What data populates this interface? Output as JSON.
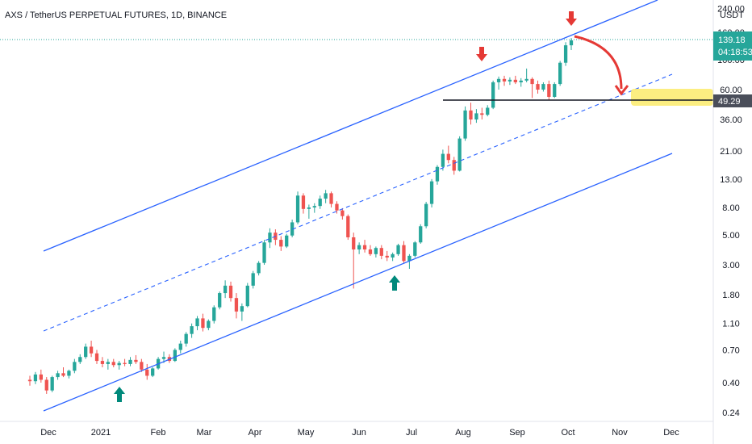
{
  "chart_data": {
    "type": "candlestick",
    "title": "AXS / TetherUS PERPETUAL FUTURES, 1D, BINANCE",
    "currency": "USDT",
    "scale": "log",
    "x_ticks": [
      "Dec",
      "2021",
      "Feb",
      "Mar",
      "Apr",
      "May",
      "Jun",
      "Jul",
      "Aug",
      "Sep",
      "Oct",
      "Nov",
      "Dec"
    ],
    "y_ticks": [
      "240.00",
      "160.00",
      "100.00",
      "60.00",
      "36.00",
      "21.00",
      "13.00",
      "8.00",
      "5.00",
      "3.00",
      "1.80",
      "1.10",
      "0.70",
      "0.40",
      "0.24"
    ],
    "last_price": "139.18",
    "countdown": "04:18:53",
    "horizontal_level": "49.29",
    "series": [
      {
        "values": [
          [
            0.42,
            0.45,
            0.38,
            0.41
          ],
          [
            0.41,
            0.48,
            0.39,
            0.46
          ],
          [
            0.46,
            0.5,
            0.4,
            0.42
          ],
          [
            0.42,
            0.44,
            0.33,
            0.35
          ],
          [
            0.35,
            0.45,
            0.34,
            0.44
          ],
          [
            0.44,
            0.49,
            0.42,
            0.47
          ],
          [
            0.47,
            0.52,
            0.44,
            0.45
          ],
          [
            0.45,
            0.5,
            0.43,
            0.49
          ],
          [
            0.49,
            0.6,
            0.47,
            0.57
          ],
          [
            0.57,
            0.65,
            0.55,
            0.62
          ],
          [
            0.62,
            0.78,
            0.6,
            0.74
          ],
          [
            0.74,
            0.82,
            0.62,
            0.66
          ],
          [
            0.66,
            0.7,
            0.55,
            0.58
          ],
          [
            0.58,
            0.62,
            0.52,
            0.55
          ],
          [
            0.55,
            0.6,
            0.5,
            0.57
          ],
          [
            0.57,
            0.6,
            0.52,
            0.54
          ],
          [
            0.54,
            0.58,
            0.5,
            0.56
          ],
          [
            0.56,
            0.6,
            0.53,
            0.55
          ],
          [
            0.55,
            0.62,
            0.53,
            0.59
          ],
          [
            0.59,
            0.64,
            0.55,
            0.57
          ],
          [
            0.57,
            0.6,
            0.48,
            0.5
          ],
          [
            0.5,
            0.55,
            0.42,
            0.45
          ],
          [
            0.45,
            0.52,
            0.44,
            0.51
          ],
          [
            0.51,
            0.62,
            0.5,
            0.6
          ],
          [
            0.6,
            0.68,
            0.56,
            0.62
          ],
          [
            0.62,
            0.65,
            0.56,
            0.58
          ],
          [
            0.58,
            0.72,
            0.57,
            0.7
          ],
          [
            0.7,
            0.82,
            0.66,
            0.78
          ],
          [
            0.78,
            0.95,
            0.74,
            0.92
          ],
          [
            0.92,
            1.1,
            0.86,
            1.05
          ],
          [
            1.05,
            1.25,
            0.98,
            1.2
          ],
          [
            1.2,
            1.3,
            0.96,
            1.02
          ],
          [
            1.02,
            1.18,
            0.98,
            1.15
          ],
          [
            1.15,
            1.5,
            1.1,
            1.45
          ],
          [
            1.45,
            1.9,
            1.4,
            1.85
          ],
          [
            1.85,
            2.3,
            1.7,
            2.1
          ],
          [
            2.1,
            2.25,
            1.6,
            1.7
          ],
          [
            1.7,
            1.85,
            1.2,
            1.35
          ],
          [
            1.35,
            1.55,
            1.15,
            1.48
          ],
          [
            1.48,
            2.2,
            1.45,
            2.1
          ],
          [
            2.1,
            2.7,
            2.0,
            2.6
          ],
          [
            2.6,
            3.2,
            2.5,
            3.1
          ],
          [
            3.1,
            4.6,
            3.0,
            4.4
          ],
          [
            4.4,
            5.6,
            4.0,
            5.2
          ],
          [
            5.2,
            5.5,
            4.2,
            4.6
          ],
          [
            4.6,
            4.9,
            3.8,
            4.1
          ],
          [
            4.1,
            5.1,
            4.0,
            4.95
          ],
          [
            4.95,
            6.5,
            4.8,
            6.2
          ],
          [
            6.2,
            10.5,
            6.0,
            9.8
          ],
          [
            9.8,
            10.2,
            7.2,
            7.8
          ],
          [
            7.8,
            8.4,
            6.6,
            8.0
          ],
          [
            8.0,
            8.6,
            7.3,
            8.2
          ],
          [
            8.2,
            9.8,
            7.8,
            9.3
          ],
          [
            9.3,
            10.8,
            8.6,
            10.2
          ],
          [
            10.2,
            10.5,
            8.0,
            8.5
          ],
          [
            8.5,
            8.9,
            7.2,
            7.6
          ],
          [
            7.6,
            7.9,
            6.5,
            6.9
          ],
          [
            6.9,
            7.1,
            4.6,
            4.8
          ],
          [
            4.8,
            5.2,
            2.0,
            3.9
          ],
          [
            3.9,
            4.4,
            3.6,
            4.2
          ],
          [
            4.2,
            4.6,
            3.7,
            3.9
          ],
          [
            3.9,
            4.2,
            3.5,
            3.6
          ],
          [
            3.6,
            4.1,
            3.4,
            4.0
          ],
          [
            4.0,
            4.2,
            3.3,
            3.5
          ],
          [
            3.5,
            3.8,
            3.2,
            3.4
          ],
          [
            3.4,
            3.7,
            3.2,
            3.6
          ],
          [
            3.6,
            4.3,
            3.5,
            4.2
          ],
          [
            4.2,
            4.5,
            3.1,
            3.2
          ],
          [
            3.2,
            3.6,
            2.8,
            3.5
          ],
          [
            3.5,
            4.5,
            3.4,
            4.4
          ],
          [
            4.4,
            6.0,
            4.3,
            5.8
          ],
          [
            5.8,
            8.8,
            5.6,
            8.5
          ],
          [
            8.5,
            13.0,
            8.0,
            12.5
          ],
          [
            12.5,
            16.5,
            11.8,
            16.0
          ],
          [
            16.0,
            21.5,
            15.0,
            20.0
          ],
          [
            20.0,
            23.0,
            17.0,
            18.0
          ],
          [
            18.0,
            19.0,
            14.0,
            15.0
          ],
          [
            15.0,
            27.0,
            14.8,
            26.0
          ],
          [
            26.0,
            45.0,
            25.0,
            42.0
          ],
          [
            42.0,
            48.0,
            33.0,
            36.0
          ],
          [
            36.0,
            43.0,
            34.0,
            40.0
          ],
          [
            40.0,
            44.0,
            36.0,
            39.0
          ],
          [
            39.0,
            46.0,
            38.0,
            44.0
          ],
          [
            44.0,
            70.0,
            43.0,
            68.0
          ],
          [
            68.0,
            75.0,
            60.0,
            72.0
          ],
          [
            72.0,
            76.0,
            64.0,
            69.0
          ],
          [
            69.0,
            74.0,
            65.0,
            71.0
          ],
          [
            71.0,
            76.0,
            66.0,
            68.0
          ],
          [
            68.0,
            73.0,
            63.0,
            70.0
          ],
          [
            70.0,
            86.0,
            68.0,
            72.0
          ],
          [
            72.0,
            74.0,
            52.0,
            66.0
          ],
          [
            66.0,
            70.0,
            56.0,
            60.0
          ],
          [
            60.0,
            68.0,
            58.0,
            66.0
          ],
          [
            66.0,
            70.0,
            50.0,
            53.0
          ],
          [
            53.0,
            68.0,
            52.0,
            66.0
          ],
          [
            66.0,
            98.0,
            64.0,
            95.0
          ],
          [
            95.0,
            135.0,
            90.0,
            128.0
          ],
          [
            128.0,
            145.0,
            118.0,
            139.18
          ]
        ]
      }
    ]
  },
  "colors": {
    "up": "#26a69a",
    "down": "#ef5350",
    "channel": "#2962ff",
    "support_line": "#131722",
    "highlight": "#fbeb6b",
    "arrow_red": "#e53935",
    "arrow_green": "#00897b",
    "last_price_badge": "#26a69a",
    "level_badge": "#4a4e5a"
  },
  "icons": [
    "down-arrow-icon",
    "up-arrow-icon",
    "curved-arrow-icon"
  ]
}
